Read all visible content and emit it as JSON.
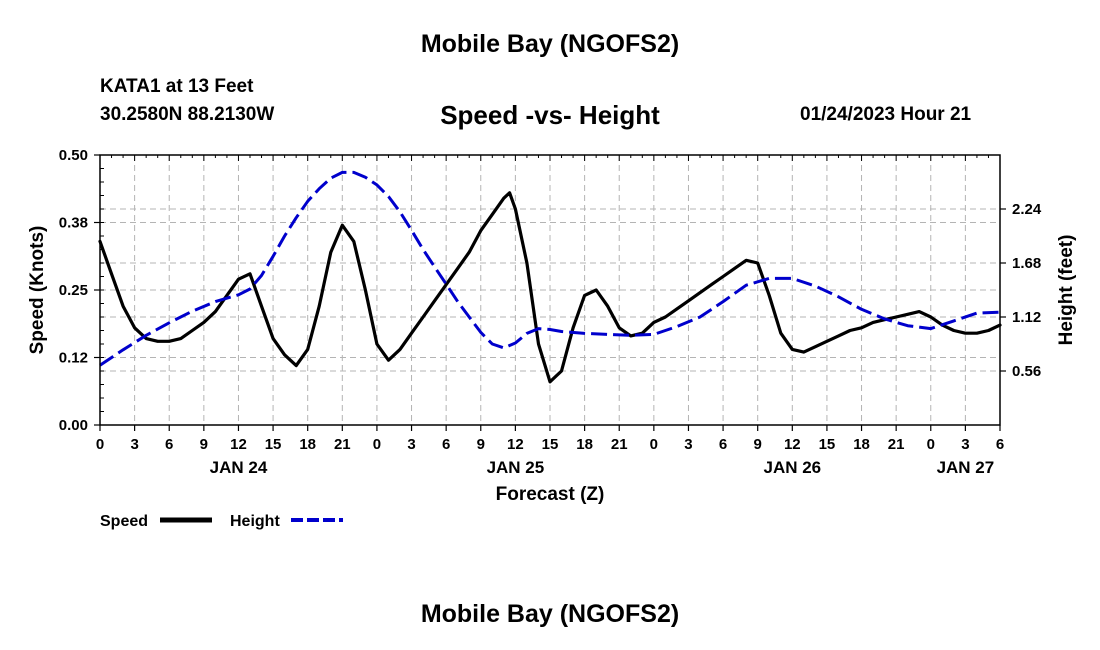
{
  "page": {
    "title": "Mobile Bay (NGOFS2)",
    "station": "KATA1 at 13 Feet",
    "coords": "30.2580N  88.2130W",
    "subtitle": "Speed -vs- Height",
    "run_time": "01/24/2023 Hour 21",
    "footer_title": "Mobile Bay (NGOFS2)"
  },
  "chart_data": {
    "type": "line",
    "title": "Speed -vs- Height",
    "xlabel": "Forecast (Z)",
    "ylabel_left": "Speed (Knots)",
    "ylabel_right": "Height (feet)",
    "x_unit": "forecast hour from JAN 24 00Z",
    "xlim": [
      0,
      78
    ],
    "x_tick_labels": [
      "0",
      "3",
      "6",
      "9",
      "12",
      "15",
      "18",
      "21",
      "0",
      "3",
      "6",
      "9",
      "12",
      "15",
      "18",
      "21",
      "0",
      "3",
      "6",
      "9",
      "12",
      "15",
      "18",
      "21",
      "0",
      "3",
      "6"
    ],
    "date_labels": [
      {
        "label": "JAN 24",
        "hour": 12
      },
      {
        "label": "JAN 25",
        "hour": 36
      },
      {
        "label": "JAN 26",
        "hour": 60
      },
      {
        "label": "JAN 27",
        "hour": 75
      }
    ],
    "ylim_left": [
      0,
      0.5
    ],
    "y_ticks_left": [
      "0.00",
      "0.12",
      "0.25",
      "0.38",
      "0.50"
    ],
    "ylim_right": [
      0.0,
      2.8
    ],
    "y_ticks_right": [
      {
        "label": "0.56",
        "value": 0.56
      },
      {
        "label": "1.12",
        "value": 1.12
      },
      {
        "label": "1.68",
        "value": 1.68
      },
      {
        "label": "2.24",
        "value": 2.24
      }
    ],
    "legend": [
      {
        "name": "Speed",
        "color": "#000000",
        "style": "solid"
      },
      {
        "name": "Height",
        "color": "#0000cc",
        "style": "dashed"
      }
    ],
    "series": [
      {
        "name": "Speed",
        "axis": "left",
        "color": "#000000",
        "x": [
          0,
          1,
          2,
          3,
          4,
          5,
          6,
          7,
          8,
          9,
          10,
          11,
          12,
          13,
          14,
          15,
          16,
          17,
          18,
          19,
          20,
          21,
          22,
          23,
          24,
          25,
          26,
          27,
          28,
          29,
          30,
          31,
          32,
          33,
          34,
          35,
          35.5,
          36,
          37,
          38,
          39,
          40,
          41,
          42,
          43,
          44,
          45,
          46,
          47,
          48,
          49,
          50,
          51,
          52,
          53,
          54,
          55,
          56,
          57,
          58,
          59,
          60,
          61,
          62,
          63,
          64,
          65,
          66,
          67,
          68,
          69,
          70,
          71,
          72,
          73,
          74,
          75,
          76,
          77,
          78
        ],
        "y": [
          0.34,
          0.28,
          0.22,
          0.18,
          0.16,
          0.155,
          0.155,
          0.16,
          0.175,
          0.19,
          0.21,
          0.24,
          0.27,
          0.28,
          0.22,
          0.16,
          0.13,
          0.11,
          0.14,
          0.22,
          0.32,
          0.37,
          0.34,
          0.25,
          0.15,
          0.12,
          0.14,
          0.17,
          0.2,
          0.23,
          0.26,
          0.29,
          0.32,
          0.36,
          0.39,
          0.42,
          0.43,
          0.4,
          0.3,
          0.15,
          0.08,
          0.1,
          0.18,
          0.24,
          0.25,
          0.22,
          0.18,
          0.165,
          0.17,
          0.19,
          0.2,
          0.215,
          0.23,
          0.245,
          0.26,
          0.275,
          0.29,
          0.305,
          0.3,
          0.24,
          0.17,
          0.14,
          0.135,
          0.145,
          0.155,
          0.165,
          0.175,
          0.18,
          0.19,
          0.195,
          0.2,
          0.205,
          0.21,
          0.2,
          0.185,
          0.175,
          0.17,
          0.17,
          0.175,
          0.185
        ]
      },
      {
        "name": "Height",
        "axis": "right",
        "color": "#0000cc",
        "x": [
          0,
          2,
          4,
          6,
          8,
          10,
          12,
          13,
          14,
          15,
          16,
          17,
          18,
          19,
          20,
          21,
          22,
          23,
          24,
          25,
          26,
          27,
          28,
          29,
          30,
          31,
          32,
          33,
          34,
          35,
          36,
          37,
          38,
          39,
          40,
          42,
          44,
          46,
          48,
          50,
          52,
          54,
          56,
          58,
          60,
          62,
          64,
          66,
          68,
          70,
          72,
          74,
          76,
          78
        ],
        "y": [
          0.62,
          0.78,
          0.93,
          1.06,
          1.18,
          1.28,
          1.35,
          1.41,
          1.55,
          1.75,
          1.96,
          2.15,
          2.32,
          2.45,
          2.56,
          2.62,
          2.62,
          2.57,
          2.49,
          2.37,
          2.21,
          2.02,
          1.82,
          1.64,
          1.46,
          1.28,
          1.12,
          0.96,
          0.84,
          0.8,
          0.85,
          0.95,
          1.0,
          0.99,
          0.97,
          0.95,
          0.94,
          0.93,
          0.94,
          1.02,
          1.12,
          1.28,
          1.45,
          1.52,
          1.52,
          1.44,
          1.33,
          1.2,
          1.1,
          1.03,
          1.0,
          1.08,
          1.16,
          1.17
        ]
      }
    ]
  }
}
